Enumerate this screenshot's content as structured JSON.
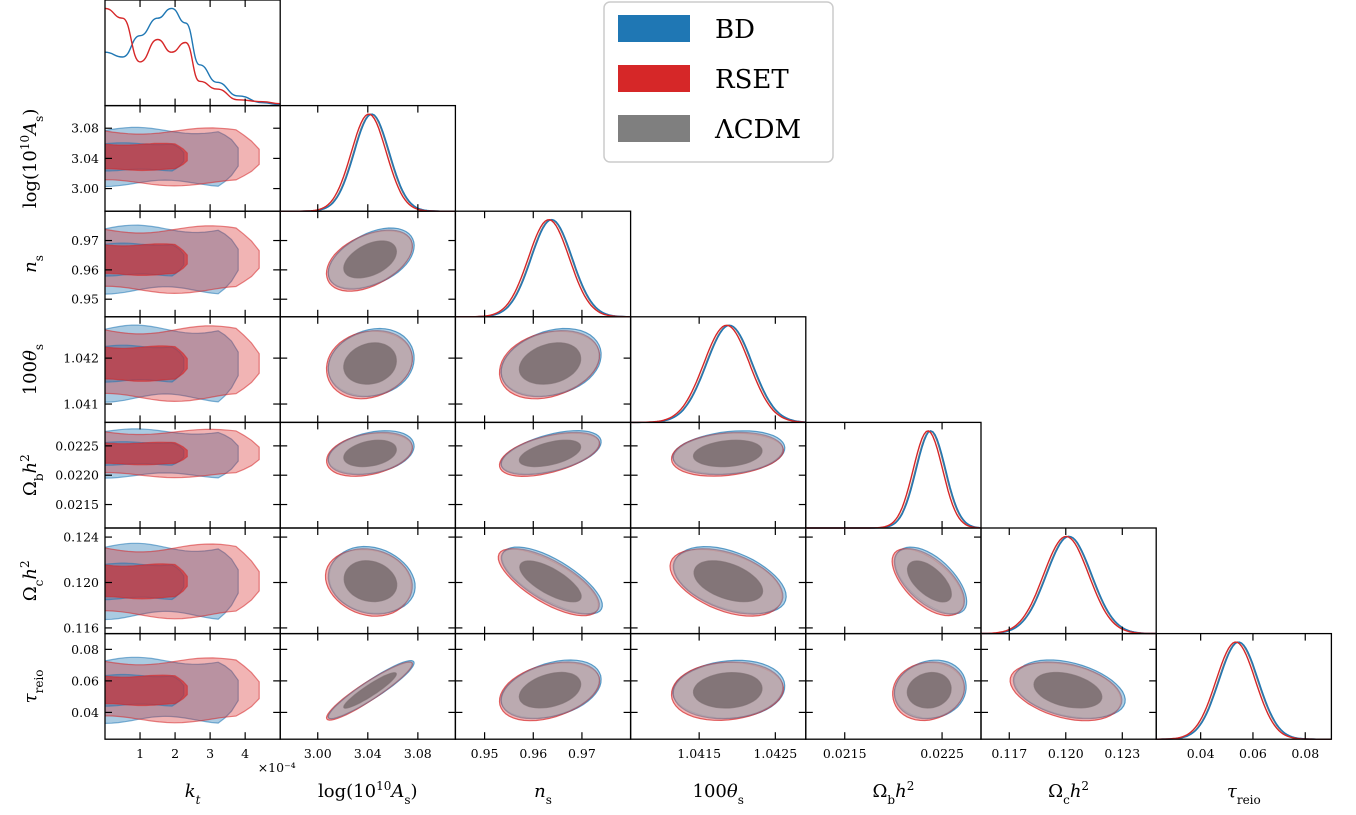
{
  "chart_data": {
    "type": "corner",
    "legend": {
      "placement": "top-right",
      "entries": [
        {
          "name": "BD",
          "color": "#1f77b4"
        },
        {
          "name": "RSET",
          "color": "#d62728"
        },
        {
          "name": "ΛCDM",
          "color": "#7f7f7f"
        }
      ]
    },
    "parameters": [
      {
        "key": "kt",
        "label": "k_t",
        "label_html": "𝑘<tspan baseline-shift='sub' font-size='12'>t</tspan>",
        "range": [
          0,
          5
        ],
        "ticks": [
          1,
          2,
          3,
          4
        ],
        "tick_labels": [
          "1",
          "2",
          "3",
          "4"
        ],
        "multiplier": "×10⁻⁴",
        "mean": 1.5
      },
      {
        "key": "logAs",
        "label": "log(10^10 A_s)",
        "range": [
          2.97,
          3.11
        ],
        "ticks": [
          3.0,
          3.04,
          3.08
        ],
        "tick_labels": [
          "3.00",
          "3.04",
          "3.08"
        ],
        "mean": 3.042,
        "sigma": 0.014
      },
      {
        "key": "ns",
        "label": "n_s",
        "range": [
          0.944,
          0.98
        ],
        "ticks": [
          0.95,
          0.96,
          0.97
        ],
        "tick_labels": [
          "0.95",
          "0.96",
          "0.97"
        ],
        "mean": 0.9635,
        "sigma": 0.0042
      },
      {
        "key": "theta",
        "label": "100θ_s",
        "range": [
          1.0406,
          1.0429
        ],
        "ticks": [
          1.0415,
          1.0425
        ],
        "tick_labels": [
          "1.0415",
          "1.0425"
        ],
        "tick_labels_y": [
          "1.041",
          "1.042"
        ],
        "ticks_y": [
          1.041,
          1.042
        ],
        "mean": 1.04188,
        "sigma": 0.0003
      },
      {
        "key": "omb",
        "label": "Ω_b h^2",
        "range": [
          0.0211,
          0.0229
        ],
        "ticks": [
          0.0215,
          0.0225
        ],
        "tick_labels": [
          "0.0215",
          "0.0225"
        ],
        "ticks_y": [
          0.0215,
          0.022,
          0.0225
        ],
        "tick_labels_y": [
          "0.0215",
          "0.0220",
          "0.0225"
        ],
        "mean": 0.02237,
        "sigma": 0.00015
      },
      {
        "key": "omc",
        "label": "Ω_c h^2",
        "range": [
          0.1155,
          0.1248
        ],
        "ticks": [
          0.117,
          0.12,
          0.123
        ],
        "tick_labels": [
          "0.117",
          "0.120",
          "0.123"
        ],
        "ticks_y": [
          0.116,
          0.12,
          0.124
        ],
        "tick_labels_y": [
          "0.116",
          "0.120",
          "0.124"
        ],
        "mean": 0.1201,
        "sigma": 0.0012
      },
      {
        "key": "tau",
        "label": "τ_reio",
        "range": [
          0.023,
          0.09
        ],
        "ticks": [
          0.04,
          0.06,
          0.08
        ],
        "tick_labels": [
          "0.04",
          "0.06",
          "0.08"
        ],
        "mean": 0.054,
        "sigma": 0.0075
      }
    ],
    "axis_labels": [
      "𝑘",
      "log(10¹⁰𝐴",
      "𝑛",
      "100θ",
      "Ω",
      "Ω",
      "τ"
    ],
    "correlations": {
      "logAs-ns": 0.45,
      "logAs-theta": 0.15,
      "logAs-omb": 0.3,
      "logAs-omc": -0.15,
      "logAs-tau": 0.93,
      "ns-theta": 0.25,
      "ns-omb": 0.5,
      "ns-omc": -0.72,
      "ns-tau": 0.35,
      "theta-omb": 0.2,
      "theta-omc": -0.45,
      "theta-tau": 0.1,
      "omb-omc": -0.6,
      "omb-tau": 0.1,
      "omc-tau": -0.35
    },
    "kt_posterior": {
      "x": [
        0,
        0.5,
        1,
        1.5,
        1.9,
        2.3,
        2.7,
        3.2,
        3.8,
        4.5,
        5
      ],
      "BD": [
        0.55,
        0.5,
        0.72,
        0.9,
        1.0,
        0.85,
        0.42,
        0.24,
        0.1,
        0.03,
        0.01
      ],
      "RSET": [
        1.0,
        0.9,
        0.45,
        0.68,
        0.55,
        0.65,
        0.25,
        0.17,
        0.06,
        0.04,
        0.02
      ]
    }
  }
}
